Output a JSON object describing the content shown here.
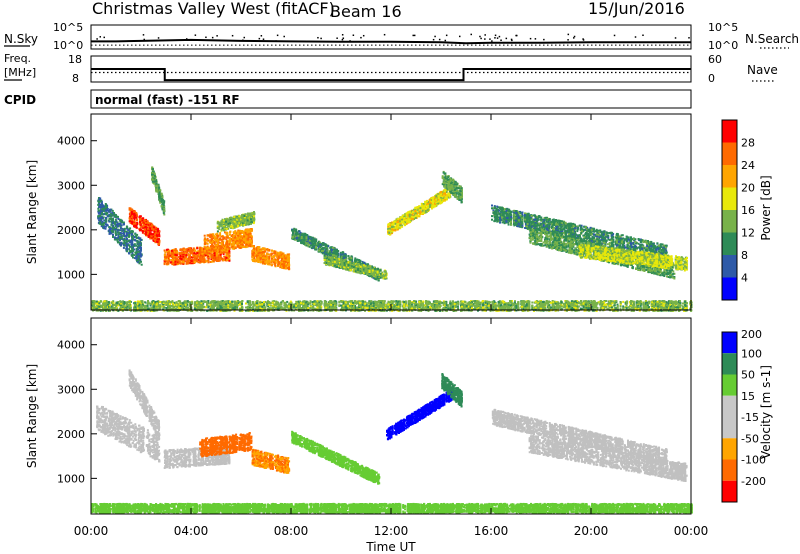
{
  "header": {
    "station": "Christmas Valley West (fitACF)",
    "beam": "Beam 16",
    "date": "15/Jun/2016",
    "cpid_label": "CPID",
    "cpid_value": "normal (fast) -151 RF"
  },
  "noise_panel": {
    "left_label": "N.Sky",
    "right_label": "N.Search",
    "left_ticks": [
      "10^5",
      "10^0"
    ],
    "right_ticks": [
      "10^5",
      "10^0"
    ]
  },
  "freq_panel": {
    "left_label_1": "Freq.",
    "left_label_2": "[MHz]",
    "right_label": "Nave",
    "left_ticks": [
      "18",
      "8"
    ],
    "right_ticks": [
      "60",
      "0"
    ]
  },
  "x_axis": {
    "label": "Time UT",
    "ticks": [
      "00:00",
      "04:00",
      "08:00",
      "12:00",
      "16:00",
      "20:00",
      "00:00"
    ]
  },
  "colors": {
    "power": [
      "#0000ff",
      "#2e5aa8",
      "#2e8b57",
      "#78b24a",
      "#e8e80a",
      "#ffa500",
      "#ff6a00",
      "#ff0000"
    ],
    "velocity": [
      "#ff0000",
      "#ff6a00",
      "#ffa500",
      "#c8c8c8",
      "#c8c8c8",
      "#66cc33",
      "#2e8b57",
      "#0000ff"
    ],
    "velocity_ground": "#c0c0c0"
  },
  "chart_data": [
    {
      "type": "line",
      "name": "noise",
      "ylim": [
        0,
        5
      ],
      "x": [
        0,
        1,
        2,
        3,
        4,
        6,
        8,
        10,
        12,
        14,
        15,
        16,
        18,
        20,
        22,
        24
      ],
      "series": [
        {
          "name": "N.Sky",
          "values": [
            1.6,
            1.6,
            1.7,
            1.8,
            1.9,
            1.7,
            1.6,
            1.5,
            1.5,
            1.4,
            1.2,
            1.3,
            1.3,
            1.4,
            1.4,
            1.4
          ]
        },
        {
          "name": "N.Search",
          "values": [
            0.8,
            0.8,
            0.8,
            0.8,
            0.8,
            0.8,
            0.8,
            0.8,
            0.8,
            0.8,
            0.8,
            0.8,
            0.8,
            0.8,
            0.8,
            0.8
          ]
        }
      ]
    },
    {
      "type": "line",
      "name": "frequency-nave",
      "x": [
        0,
        2.95,
        2.95,
        14.9,
        14.9,
        24
      ],
      "series": [
        {
          "name": "Freq.",
          "values": [
            13,
            13,
            8.7,
            8.7,
            13,
            13
          ],
          "ylim": [
            8,
            18
          ]
        },
        {
          "name": "Nave",
          "values": [
            22,
            22,
            22,
            22,
            22,
            22
          ],
          "ylim": [
            0,
            60
          ]
        }
      ]
    },
    {
      "type": "heatmap",
      "name": "power",
      "ylabel": "Slant Range [km]",
      "colorbar_label": "Power [dB]",
      "ylim": [
        200,
        4600
      ],
      "xlim": [
        0,
        24
      ],
      "yticks": [
        1000,
        2000,
        3000,
        4000
      ],
      "cbar_ticks": [
        "4",
        "8",
        "12",
        "16",
        "20",
        "24",
        "28"
      ],
      "cbar_range": [
        0,
        32
      ],
      "bands": [
        {
          "t0": 0.2,
          "t1": 2.0,
          "r0": 2500,
          "r1": 1500,
          "w": 600,
          "v": 8
        },
        {
          "t0": 1.5,
          "t1": 2.7,
          "r0": 2350,
          "r1": 1850,
          "w": 350,
          "v": 28
        },
        {
          "t0": 2.4,
          "t1": 2.9,
          "r0": 3300,
          "r1": 2500,
          "w": 300,
          "v": 12
        },
        {
          "t0": 2.9,
          "t1": 5.5,
          "r0": 1400,
          "r1": 1500,
          "w": 350,
          "v": 26
        },
        {
          "t0": 4.5,
          "t1": 6.4,
          "r0": 1700,
          "r1": 1850,
          "w": 400,
          "v": 24
        },
        {
          "t0": 6.4,
          "t1": 7.9,
          "r0": 1500,
          "r1": 1300,
          "w": 350,
          "v": 24
        },
        {
          "t0": 5.0,
          "t1": 6.5,
          "r0": 2100,
          "r1": 2300,
          "w": 250,
          "v": 14
        },
        {
          "t0": 8.0,
          "t1": 11.5,
          "r0": 1950,
          "r1": 1000,
          "w": 250,
          "v": 10
        },
        {
          "t0": 9.3,
          "t1": 11.8,
          "r0": 1350,
          "r1": 1000,
          "w": 200,
          "v": 14
        },
        {
          "t0": 11.8,
          "t1": 14.4,
          "r0": 2000,
          "r1": 2900,
          "w": 250,
          "v": 18
        },
        {
          "t0": 14.0,
          "t1": 14.8,
          "r0": 3200,
          "r1": 2800,
          "w": 350,
          "v": 12
        },
        {
          "t0": 16.0,
          "t1": 23.0,
          "r0": 2400,
          "r1": 1500,
          "w": 350,
          "v": 10
        },
        {
          "t0": 17.5,
          "t1": 23.3,
          "r0": 1900,
          "r1": 1100,
          "w": 350,
          "v": 12
        },
        {
          "t0": 19.5,
          "t1": 23.8,
          "r0": 1550,
          "r1": 1250,
          "w": 300,
          "v": 17
        },
        {
          "t0": 0.0,
          "t1": 24.0,
          "r0": 300,
          "r1": 300,
          "w": 250,
          "v": 14
        }
      ]
    },
    {
      "type": "heatmap",
      "name": "velocity",
      "ylabel": "Slant Range [km]",
      "colorbar_label": "Velocity [m s-1]",
      "ylim": [
        200,
        4600
      ],
      "xlim": [
        0,
        24
      ],
      "yticks": [
        1000,
        2000,
        3000,
        4000
      ],
      "cbar_ticks": [
        "200",
        "100",
        "50",
        "15",
        "-15",
        "-50",
        "-100",
        "-200"
      ],
      "bands": [
        {
          "t0": 0.2,
          "t1": 2.7,
          "r0": 2400,
          "r1": 1700,
          "w": 600,
          "v": 0
        },
        {
          "t0": 1.5,
          "t1": 2.7,
          "r0": 3300,
          "r1": 2100,
          "w": 400,
          "v": 0
        },
        {
          "t0": 2.9,
          "t1": 5.5,
          "r0": 1450,
          "r1": 1550,
          "w": 400,
          "v": 0
        },
        {
          "t0": 4.3,
          "t1": 6.4,
          "r0": 1700,
          "r1": 1850,
          "w": 400,
          "v": -80
        },
        {
          "t0": 6.4,
          "t1": 7.9,
          "r0": 1500,
          "r1": 1300,
          "w": 350,
          "v": -50
        },
        {
          "t0": 8.0,
          "t1": 11.5,
          "r0": 1950,
          "r1": 1000,
          "w": 250,
          "v": 40
        },
        {
          "t0": 11.8,
          "t1": 14.4,
          "r0": 2000,
          "r1": 2900,
          "w": 250,
          "v": 180
        },
        {
          "t0": 14.0,
          "t1": 14.8,
          "r0": 3200,
          "r1": 2800,
          "w": 350,
          "v": 120
        },
        {
          "t0": 16.0,
          "t1": 23.0,
          "r0": 2400,
          "r1": 1500,
          "w": 350,
          "v": 0
        },
        {
          "t0": 17.5,
          "t1": 23.8,
          "r0": 1800,
          "r1": 1150,
          "w": 400,
          "v": 0
        },
        {
          "t0": 0.0,
          "t1": 24.0,
          "r0": 350,
          "r1": 350,
          "w": 200,
          "v": 30
        }
      ]
    }
  ]
}
